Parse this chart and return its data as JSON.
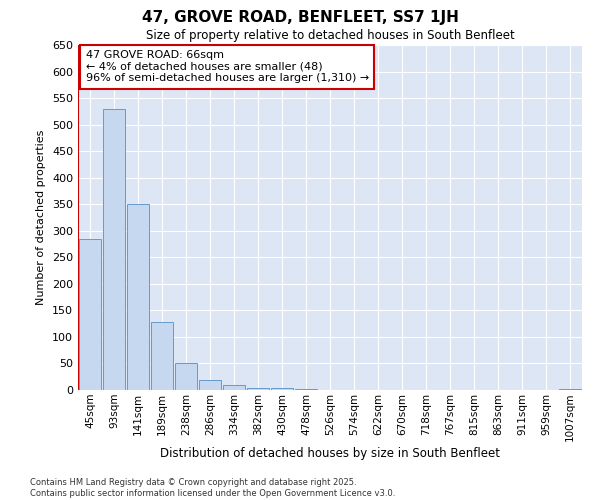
{
  "title": "47, GROVE ROAD, BENFLEET, SS7 1JH",
  "subtitle": "Size of property relative to detached houses in South Benfleet",
  "xlabel": "Distribution of detached houses by size in South Benfleet",
  "ylabel": "Number of detached properties",
  "bar_color": "#c5d8f0",
  "bar_edge_color": "#6699cc",
  "background_color": "#dce6f5",
  "grid_color": "#ffffff",
  "fig_background": "#ffffff",
  "categories": [
    "45sqm",
    "93sqm",
    "141sqm",
    "189sqm",
    "238sqm",
    "286sqm",
    "334sqm",
    "382sqm",
    "430sqm",
    "478sqm",
    "526sqm",
    "574sqm",
    "622sqm",
    "670sqm",
    "718sqm",
    "767sqm",
    "815sqm",
    "863sqm",
    "911sqm",
    "959sqm",
    "1007sqm"
  ],
  "values": [
    285,
    530,
    350,
    128,
    50,
    18,
    10,
    3,
    3,
    1,
    0,
    0,
    0,
    0,
    0,
    0,
    0,
    0,
    0,
    0,
    2
  ],
  "ylim": [
    0,
    650
  ],
  "yticks": [
    0,
    50,
    100,
    150,
    200,
    250,
    300,
    350,
    400,
    450,
    500,
    550,
    600,
    650
  ],
  "annotation_text": "47 GROVE ROAD: 66sqm\n← 4% of detached houses are smaller (48)\n96% of semi-detached houses are larger (1,310) →",
  "annotation_box_color": "#ffffff",
  "annotation_box_edge": "#cc0000",
  "vline_color": "#cc0000",
  "vline_x": -0.5,
  "footer_line1": "Contains HM Land Registry data © Crown copyright and database right 2025.",
  "footer_line2": "Contains public sector information licensed under the Open Government Licence v3.0."
}
